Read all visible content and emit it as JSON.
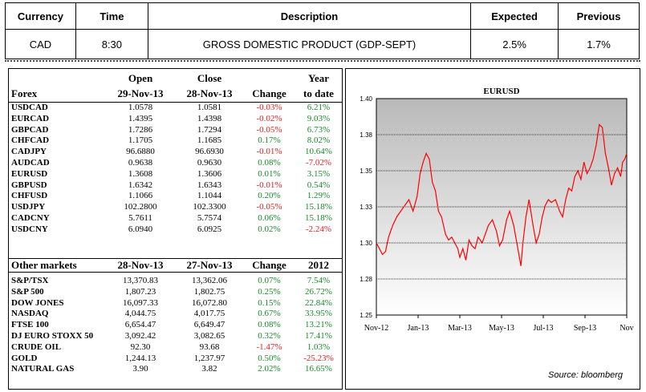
{
  "eco": {
    "headers": [
      "Currency",
      "Time",
      "Description",
      "Expected",
      "Previous"
    ],
    "row": [
      "CAD",
      "8:30",
      "GROSS DOMESTIC PRODUCT (GDP-SEPT)",
      "2.5%",
      "1.7%"
    ]
  },
  "forex": {
    "col_open": "Open",
    "col_open_date": "29-Nov-13",
    "col_close": "Close",
    "col_close_date": "28-Nov-13",
    "col_change": "Change",
    "col_ytd_1": "Year",
    "col_ytd_2": "to date",
    "label": "Forex",
    "rows": [
      {
        "name": "USDCAD",
        "open": "1.0578",
        "close": "1.0581",
        "change": "-0.03%",
        "ytd": "6.21%"
      },
      {
        "name": "EURCAD",
        "open": "1.4395",
        "close": "1.4398",
        "change": "-0.02%",
        "ytd": "9.03%"
      },
      {
        "name": "GBPCAD",
        "open": "1.7286",
        "close": "1.7294",
        "change": "-0.05%",
        "ytd": "6.73%"
      },
      {
        "name": "CHFCAD",
        "open": "1.1705",
        "close": "1.1685",
        "change": "0.17%",
        "ytd": "8.02%"
      },
      {
        "name": "CADJPY",
        "open": "96.6880",
        "close": "96.6930",
        "change": "-0.01%",
        "ytd": "10.64%"
      },
      {
        "name": "AUDCAD",
        "open": "0.9638",
        "close": "0.9630",
        "change": "0.08%",
        "ytd": "-7.02%"
      },
      {
        "name": "EURUSD",
        "open": "1.3608",
        "close": "1.3606",
        "change": "0.01%",
        "ytd": "3.15%"
      },
      {
        "name": "GBPUSD",
        "open": "1.6342",
        "close": "1.6343",
        "change": "-0.01%",
        "ytd": "0.54%"
      },
      {
        "name": "CHFUSD",
        "open": "1.1066",
        "close": "1.1044",
        "change": "0.20%",
        "ytd": "1.29%"
      },
      {
        "name": "USDJPY",
        "open": "102.2800",
        "close": "102.3300",
        "change": "-0.05%",
        "ytd": "15.18%"
      },
      {
        "name": "CADCNY",
        "open": "5.7611",
        "close": "5.7574",
        "change": "0.06%",
        "ytd": "15.18%"
      },
      {
        "name": "USDCNY",
        "open": "6.0940",
        "close": "6.0925",
        "change": "0.02%",
        "ytd": "-2.24%"
      }
    ]
  },
  "other": {
    "label": "Other markets",
    "col_a": "28-Nov-13",
    "col_b": "27-Nov-13",
    "col_change": "Change",
    "col_year": "2012",
    "rows": [
      {
        "name": "S&P/TSX",
        "a": "13,370.83",
        "b": "13,362.06",
        "change": "0.07%",
        "ytd": "7.54%"
      },
      {
        "name": "S&P 500",
        "a": "1,807.23",
        "b": "1,802.75",
        "change": "0.25%",
        "ytd": "26.72%"
      },
      {
        "name": "DOW JONES",
        "a": "16,097.33",
        "b": "16,072.80",
        "change": "0.15%",
        "ytd": "22.84%"
      },
      {
        "name": "NASDAQ",
        "a": "4,044.75",
        "b": "4,017.75",
        "change": "0.67%",
        "ytd": "33.95%"
      },
      {
        "name": "FTSE 100",
        "a": "6,654.47",
        "b": "6,649.47",
        "change": "0.08%",
        "ytd": "13.21%"
      },
      {
        "name": "DJ EURO STOXX 50",
        "a": "3,092.42",
        "b": "3,082.65",
        "change": "0.32%",
        "ytd": "17.41%"
      },
      {
        "name": "CRUDE OIL",
        "a": "92.30",
        "b": "93.68",
        "change": "-1.47%",
        "ytd": "1.03%"
      },
      {
        "name": "GOLD",
        "a": "1,244.13",
        "b": "1,237.97",
        "change": "0.50%",
        "ytd": "-25.23%"
      },
      {
        "name": "NATURAL GAS",
        "a": "3.90",
        "b": "3.82",
        "change": "2.02%",
        "ytd": "16.65%"
      }
    ]
  },
  "colors": {
    "negative": "#e02020",
    "positive": "#1a8a2a",
    "line": "#ff0000"
  },
  "chart_data": {
    "type": "line",
    "title": "EURUSD",
    "source": "Source: bloomberg",
    "y_ticks": [
      "1.40",
      "1.38",
      "1.35",
      "1.33",
      "1.30",
      "1.28",
      "1.25"
    ],
    "ylim": [
      1.25,
      1.4
    ],
    "x_ticks": [
      "Nov-12",
      "Jan-13",
      "Mar-13",
      "May-13",
      "Jul-13",
      "Sep-13",
      "Nov"
    ],
    "xlim": [
      0,
      12.3
    ],
    "series": [
      {
        "values": [
          [
            0.0,
            1.3
          ],
          [
            0.15,
            1.296
          ],
          [
            0.3,
            1.292
          ],
          [
            0.45,
            1.294
          ],
          [
            0.6,
            1.304
          ],
          [
            0.8,
            1.312
          ],
          [
            1.0,
            1.318
          ],
          [
            1.2,
            1.322
          ],
          [
            1.4,
            1.326
          ],
          [
            1.6,
            1.33
          ],
          [
            1.8,
            1.322
          ],
          [
            2.0,
            1.332
          ],
          [
            2.15,
            1.348
          ],
          [
            2.3,
            1.356
          ],
          [
            2.45,
            1.362
          ],
          [
            2.6,
            1.358
          ],
          [
            2.75,
            1.342
          ],
          [
            2.9,
            1.336
          ],
          [
            3.05,
            1.322
          ],
          [
            3.2,
            1.318
          ],
          [
            3.4,
            1.306
          ],
          [
            3.55,
            1.302
          ],
          [
            3.7,
            1.304
          ],
          [
            3.85,
            1.3
          ],
          [
            4.0,
            1.296
          ],
          [
            4.1,
            1.29
          ],
          [
            4.25,
            1.296
          ],
          [
            4.4,
            1.288
          ],
          [
            4.55,
            1.302
          ],
          [
            4.7,
            1.298
          ],
          [
            4.85,
            1.296
          ],
          [
            5.0,
            1.304
          ],
          [
            5.2,
            1.3
          ],
          [
            5.35,
            1.306
          ],
          [
            5.5,
            1.312
          ],
          [
            5.7,
            1.316
          ],
          [
            5.9,
            1.308
          ],
          [
            6.05,
            1.298
          ],
          [
            6.2,
            1.302
          ],
          [
            6.4,
            1.316
          ],
          [
            6.55,
            1.322
          ],
          [
            6.75,
            1.312
          ],
          [
            6.9,
            1.3
          ],
          [
            7.0,
            1.292
          ],
          [
            7.1,
            1.284
          ],
          [
            7.2,
            1.3
          ],
          [
            7.35,
            1.318
          ],
          [
            7.5,
            1.33
          ],
          [
            7.7,
            1.312
          ],
          [
            7.85,
            1.3
          ],
          [
            8.0,
            1.306
          ],
          [
            8.15,
            1.318
          ],
          [
            8.3,
            1.326
          ],
          [
            8.45,
            1.33
          ],
          [
            8.6,
            1.328
          ],
          [
            8.8,
            1.33
          ],
          [
            9.0,
            1.322
          ],
          [
            9.15,
            1.318
          ],
          [
            9.3,
            1.33
          ],
          [
            9.45,
            1.338
          ],
          [
            9.6,
            1.336
          ],
          [
            9.75,
            1.346
          ],
          [
            9.9,
            1.35
          ],
          [
            10.05,
            1.344
          ],
          [
            10.2,
            1.356
          ],
          [
            10.35,
            1.348
          ],
          [
            10.5,
            1.352
          ],
          [
            10.65,
            1.358
          ],
          [
            10.8,
            1.368
          ],
          [
            10.95,
            1.382
          ],
          [
            11.1,
            1.38
          ],
          [
            11.25,
            1.362
          ],
          [
            11.4,
            1.352
          ],
          [
            11.55,
            1.34
          ],
          [
            11.7,
            1.348
          ],
          [
            11.85,
            1.352
          ],
          [
            12.0,
            1.346
          ],
          [
            12.1,
            1.356
          ],
          [
            12.2,
            1.358
          ],
          [
            12.3,
            1.362
          ]
        ]
      }
    ]
  }
}
